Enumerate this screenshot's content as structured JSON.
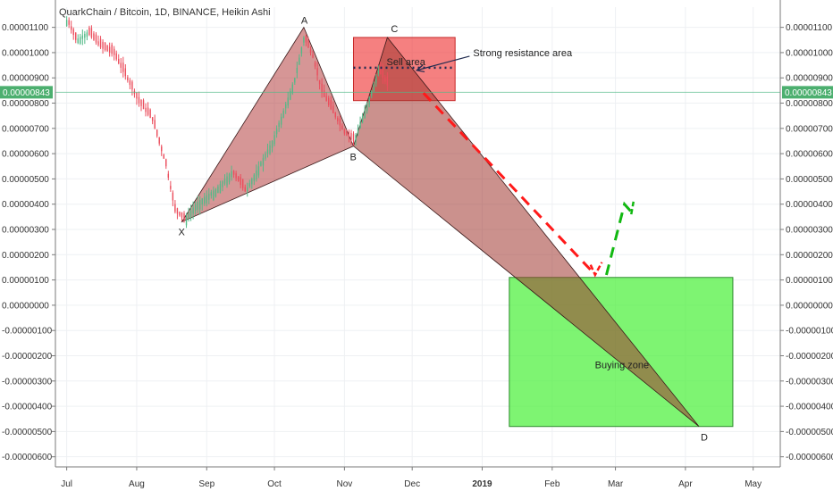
{
  "colors": {
    "background": "#ffffff",
    "grid": "#eef0f3",
    "axis": "#7a7a7a",
    "up_candle": "#53b987",
    "down_candle": "#eb4d5c",
    "xabc_fill": "#b5403f",
    "cd_fill": "#a0362f",
    "sell_box": "#f03c3c",
    "buy_box": "#4cf03c",
    "buy_box_border": "#2f8a2f",
    "red_dash": "#ff1a1a",
    "green_dash": "#11b811",
    "price_line": "#53b987",
    "price_tag": "#4caf6f",
    "sell_dots": "#1f2a4f"
  },
  "chart_data": {
    "type": "candlestick",
    "title": "QuarkChain / Bitcoin, 1D, BINANCE, Heikin Ashi",
    "y_ticks": [
      "0.00001100",
      "0.00001000",
      "0.00000900",
      "0.00000800",
      "0.00000700",
      "0.00000600",
      "0.00000500",
      "0.00000400",
      "0.00000300",
      "0.00000200",
      "0.00000100",
      "0.00000000",
      "-0.00000100",
      "-0.00000200",
      "-0.00000300",
      "-0.00000400",
      "-0.00000500",
      "-0.00000600"
    ],
    "ylim": [
      -6.4e-06,
      1.18e-05
    ],
    "x_ticks": [
      "Jul",
      "Aug",
      "Sep",
      "Oct",
      "Nov",
      "Dec",
      "2019",
      "Feb",
      "Mar",
      "Apr",
      "May"
    ],
    "x_range": [
      "2018-06-26",
      "2019-05-13"
    ],
    "current_price": "0.00000843",
    "price_path": [
      {
        "date": "2018-07-01",
        "value": 1.13e-05
      },
      {
        "date": "2018-07-05",
        "value": 1.05e-05
      },
      {
        "date": "2018-07-10",
        "value": 1.08e-05
      },
      {
        "date": "2018-07-16",
        "value": 1.02e-05
      },
      {
        "date": "2018-07-22",
        "value": 9.9e-06
      },
      {
        "date": "2018-07-28",
        "value": 8.9e-06
      },
      {
        "date": "2018-08-02",
        "value": 8e-06
      },
      {
        "date": "2018-08-08",
        "value": 7.3e-06
      },
      {
        "date": "2018-08-14",
        "value": 5.5e-06
      },
      {
        "date": "2018-08-18",
        "value": 3.7e-06
      },
      {
        "date": "2018-08-22",
        "value": 3.4e-06
      },
      {
        "date": "2018-08-28",
        "value": 4.1e-06
      },
      {
        "date": "2018-09-05",
        "value": 4.6e-06
      },
      {
        "date": "2018-09-12",
        "value": 5.3e-06
      },
      {
        "date": "2018-09-18",
        "value": 4.5e-06
      },
      {
        "date": "2018-09-24",
        "value": 5.5e-06
      },
      {
        "date": "2018-09-30",
        "value": 6.5e-06
      },
      {
        "date": "2018-10-05",
        "value": 7.7e-06
      },
      {
        "date": "2018-10-10",
        "value": 9e-06
      },
      {
        "date": "2018-10-14",
        "value": 1.06e-05
      },
      {
        "date": "2018-10-18",
        "value": 9.8e-06
      },
      {
        "date": "2018-10-22",
        "value": 8.4e-06
      },
      {
        "date": "2018-10-27",
        "value": 7.6e-06
      },
      {
        "date": "2018-11-01",
        "value": 6.8e-06
      },
      {
        "date": "2018-11-05",
        "value": 6.5e-06
      },
      {
        "date": "2018-11-09",
        "value": 7.5e-06
      },
      {
        "date": "2018-11-13",
        "value": 8.5e-06
      },
      {
        "date": "2018-11-16",
        "value": 9.3e-06
      },
      {
        "date": "2018-11-20",
        "value": 8.7e-06
      }
    ],
    "pattern": {
      "X": {
        "label": "X",
        "date": "2018-08-21",
        "value": 3.3e-06
      },
      "A": {
        "label": "A",
        "date": "2018-10-14",
        "value": 1.1e-05
      },
      "B": {
        "label": "B",
        "date": "2018-11-05",
        "value": 6.3e-06
      },
      "C": {
        "label": "C",
        "date": "2018-11-20",
        "value": 1.06e-05
      },
      "D": {
        "label": "D",
        "date": "2019-04-07",
        "value": -4.8e-06
      }
    },
    "zones": [
      {
        "name": "sell",
        "label": "Sell area",
        "date_start": "2018-11-05",
        "date_end": "2018-12-20",
        "top": 1.06e-05,
        "bottom": 8.1e-06,
        "dots_value": 9.4e-06
      },
      {
        "name": "buy",
        "label": "Buying zone",
        "date_start": "2019-01-13",
        "date_end": "2019-04-22",
        "top": 1.1e-06,
        "bottom": -4.8e-06
      }
    ],
    "annotations": [
      {
        "text": "Strong resistance area",
        "date": "2018-12-28",
        "value": 1e-05,
        "arrow_to_date": "2018-12-03",
        "arrow_to_value": 9.3e-06
      }
    ],
    "projection_down": [
      {
        "date": "2018-12-06",
        "value": 8.4e-06
      },
      {
        "date": "2019-02-18",
        "value": 1.4e-06
      },
      {
        "date": "2019-02-20",
        "value": 1.3e-06
      }
    ],
    "projection_down_tick": [
      {
        "date": "2019-02-18",
        "value": 1.6e-06
      },
      {
        "date": "2019-02-20",
        "value": 1.2e-06
      },
      {
        "date": "2019-02-23",
        "value": 1.7e-06
      }
    ],
    "projection_up": [
      {
        "date": "2019-02-25",
        "value": 1.2e-06
      },
      {
        "date": "2019-03-05",
        "value": 4e-06
      },
      {
        "date": "2019-03-08",
        "value": 3.7e-06
      }
    ],
    "projection_up_tick": [
      {
        "date": "2019-03-08",
        "value": 3.6e-06
      },
      {
        "date": "2019-03-09",
        "value": 4.1e-06
      }
    ]
  }
}
